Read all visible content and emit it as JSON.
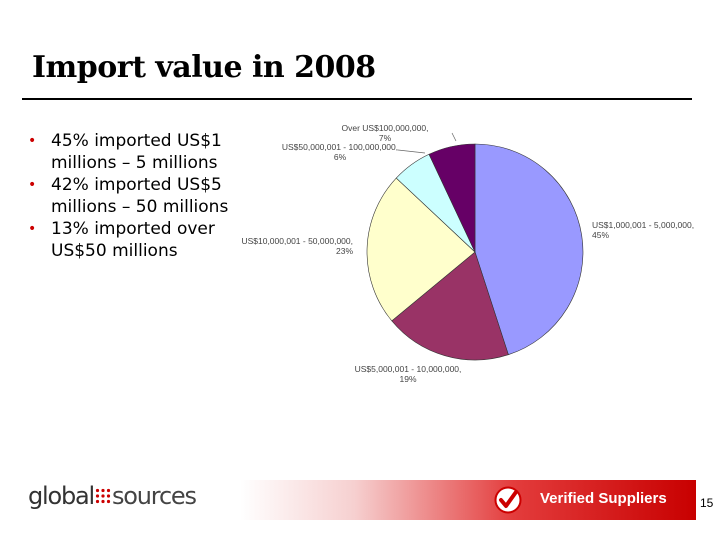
{
  "slide": {
    "title": "Import value in 2008",
    "page_number": "15"
  },
  "bullets": [
    "45% imported US$1 millions – 5 millions",
    "42% imported US$5 millions – 50 millions",
    "13% imported over US$50 millions"
  ],
  "chart_data": {
    "type": "pie",
    "title": "",
    "slices": [
      {
        "label": "US$1,000,001 - 5,000,000, 45%",
        "value": 45,
        "color": "#9999ff"
      },
      {
        "label": "US$5,000,001 - 10,000,000, 19%",
        "value": 19,
        "color": "#993366"
      },
      {
        "label": "US$10,000,001 - 50,000,000, 23%",
        "value": 23,
        "color": "#ffffcc"
      },
      {
        "label": "US$50,000,001 - 100,000,000, 6%",
        "value": 6,
        "color": "#ccffff"
      },
      {
        "label": "Over US$100,000,000, 7%",
        "value": 7,
        "color": "#660066"
      }
    ]
  },
  "footer": {
    "logo_part_a": "global",
    "logo_part_b": "sources",
    "banner_text": "Verified Suppliers",
    "accent_color": "#cc0000"
  }
}
